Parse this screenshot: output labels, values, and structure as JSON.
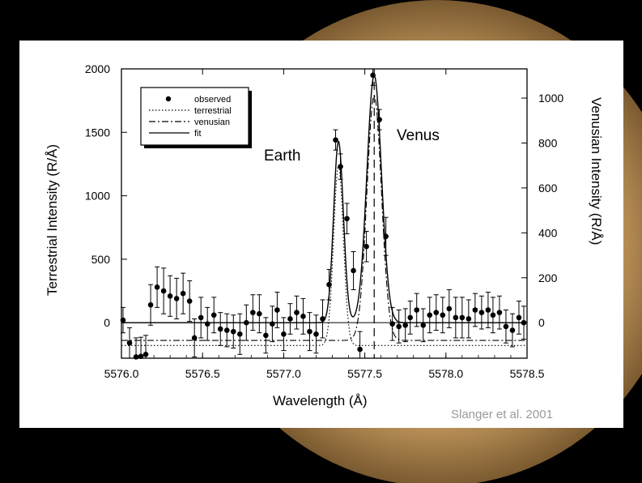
{
  "colors": {
    "background": "#000000",
    "panel": "#ffffff",
    "ink": "#000000",
    "credit": "#9a9a9a",
    "planet": "#c9a06a"
  },
  "annotations": {
    "earth": "Earth",
    "venus": "Venus"
  },
  "credit": "Slanger et al. 2001",
  "chart_data": {
    "type": "scatter",
    "xlabel": "Wavelength (Å)",
    "ylabel": "Terrestrial Intensity (R/Å)",
    "y2label": "Venusian Intensity (R/Å)",
    "xlim": [
      5576.0,
      5578.5
    ],
    "ylim": [
      -280,
      2000
    ],
    "y2lim": [
      -158,
      1130
    ],
    "xticks": [
      "5576.0",
      "5576.5",
      "5577.0",
      "5577.5",
      "5578.0",
      "5578.5"
    ],
    "yticks": [
      "0",
      "500",
      "1000",
      "1500",
      "2000"
    ],
    "y2ticks": [
      "0",
      "200",
      "400",
      "600",
      "800",
      "1000"
    ],
    "legend": {
      "position": "top-left",
      "entries": [
        "observed",
        "terrestrial",
        "venusian",
        "fit"
      ]
    },
    "series": [
      {
        "name": "observed",
        "style": "points-with-error-bars",
        "x": [
          5576.01,
          5576.05,
          5576.09,
          5576.12,
          5576.15,
          5576.18,
          5576.22,
          5576.26,
          5576.3,
          5576.34,
          5576.38,
          5576.42,
          5576.45,
          5576.49,
          5576.53,
          5576.57,
          5576.61,
          5576.65,
          5576.69,
          5576.73,
          5576.77,
          5576.81,
          5576.85,
          5576.89,
          5576.93,
          5576.96,
          5577.0,
          5577.04,
          5577.08,
          5577.12,
          5577.16,
          5577.2,
          5577.24,
          5577.28,
          5577.32,
          5577.35,
          5577.39,
          5577.43,
          5577.47,
          5577.51,
          5577.55,
          5577.59,
          5577.63,
          5577.67,
          5577.71,
          5577.75,
          5577.78,
          5577.82,
          5577.86,
          5577.9,
          5577.94,
          5577.98,
          5578.02,
          5578.06,
          5578.1,
          5578.14,
          5578.18,
          5578.22,
          5578.26,
          5578.29,
          5578.33,
          5578.37,
          5578.41,
          5578.45,
          5578.48
        ],
        "y": [
          20,
          -160,
          -270,
          -265,
          -250,
          140,
          280,
          250,
          210,
          190,
          230,
          170,
          -120,
          40,
          -10,
          60,
          -50,
          -60,
          -70,
          -90,
          0,
          80,
          70,
          -100,
          -10,
          100,
          -90,
          30,
          80,
          50,
          -70,
          -90,
          30,
          300,
          1440,
          1230,
          820,
          410,
          -210,
          600,
          1950,
          1600,
          680,
          -10,
          -30,
          -20,
          40,
          100,
          -20,
          60,
          80,
          60,
          110,
          40,
          40,
          30,
          100,
          80,
          100,
          60,
          80,
          -30,
          -60,
          40,
          0
        ],
        "err": [
          100,
          120,
          150,
          150,
          150,
          160,
          160,
          180,
          160,
          160,
          160,
          160,
          150,
          160,
          130,
          140,
          130,
          130,
          130,
          160,
          140,
          140,
          150,
          140,
          140,
          140,
          130,
          120,
          130,
          140,
          150,
          150,
          150,
          120,
          80,
          100,
          120,
          150,
          140,
          120,
          80,
          80,
          150,
          130,
          130,
          130,
          130,
          130,
          130,
          140,
          140,
          140,
          150,
          160,
          160,
          150,
          130,
          130,
          140,
          140,
          130,
          130,
          130,
          130,
          130
        ]
      },
      {
        "name": "terrestrial",
        "style": "dotted",
        "baseline": -180,
        "peak_center": 5577.338,
        "peak_height": 1420,
        "peak_sigma": 0.03
      },
      {
        "name": "venusian",
        "style": "dash-dot",
        "baseline": -140,
        "peak_center": 5577.558,
        "peak_height": 1930,
        "peak_sigma": 0.045
      },
      {
        "name": "fit",
        "style": "solid",
        "baseline": 0,
        "peaks": [
          {
            "center": 5577.338,
            "height": 1430,
            "sigma": 0.03
          },
          {
            "center": 5577.558,
            "height": 1950,
            "sigma": 0.045
          }
        ]
      }
    ],
    "reference_line": {
      "style": "dashed-vertical",
      "x": 5577.558
    },
    "grid": false
  }
}
